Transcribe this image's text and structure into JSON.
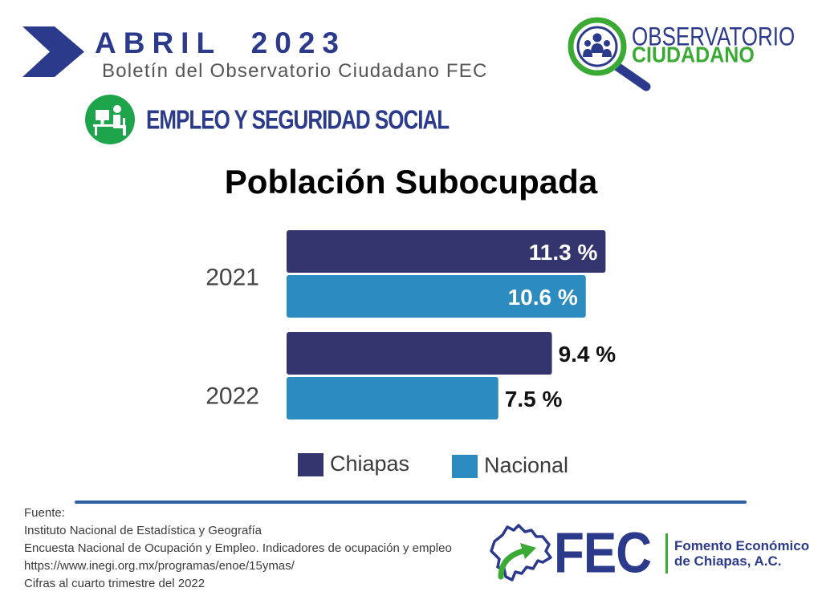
{
  "header": {
    "month_year": "ABRIL 2023",
    "bulletin": "Boletín del Observatorio Ciudadano FEC",
    "section": "EMPLEO Y SEGURIDAD SOCIAL"
  },
  "observatorio_logo": {
    "line1": "OBSERVATORIO",
    "line2": "CIUDADANO"
  },
  "chart_data": {
    "type": "bar",
    "orientation": "horizontal",
    "title": "Población Subocupada",
    "categories": [
      "2021",
      "2022"
    ],
    "series": [
      {
        "name": "Chiapas",
        "values": [
          11.3,
          9.4
        ],
        "labels": [
          "11.3 %",
          "9.4 %"
        ],
        "color": "#34346f"
      },
      {
        "name": "Nacional",
        "values": [
          10.6,
          7.5
        ],
        "labels": [
          "10.6 %",
          "7.5 %"
        ],
        "color": "#2d8cbf"
      }
    ],
    "legend": "bottom",
    "grid": false
  },
  "source": {
    "lines": [
      "Fuente:",
      "Instituto Nacional de Estadística y Geografía",
      "Encuesta Nacional de Ocupación y Empleo. Indicadores de ocupación y empleo",
      "https://www.inegi.org.mx/programas/enoe/15ymas/",
      "Cifras al cuarto trimestre del 2022"
    ]
  },
  "fec_logo": {
    "acronym": "FEC",
    "line1": "Fomento Económico",
    "line2": "de Chiapas, A.C."
  },
  "colors": {
    "brand_blue": "#2c3a8c",
    "brand_green": "#3aaa35",
    "section_icon_green": "#1ea54b",
    "divider": "#2e5f9e"
  },
  "icons": {
    "header": "chevron-right-icon",
    "section": "office-worker-icon",
    "observatorio": "magnifier-people-icon",
    "fec": "chiapas-map-arrow-icon"
  }
}
